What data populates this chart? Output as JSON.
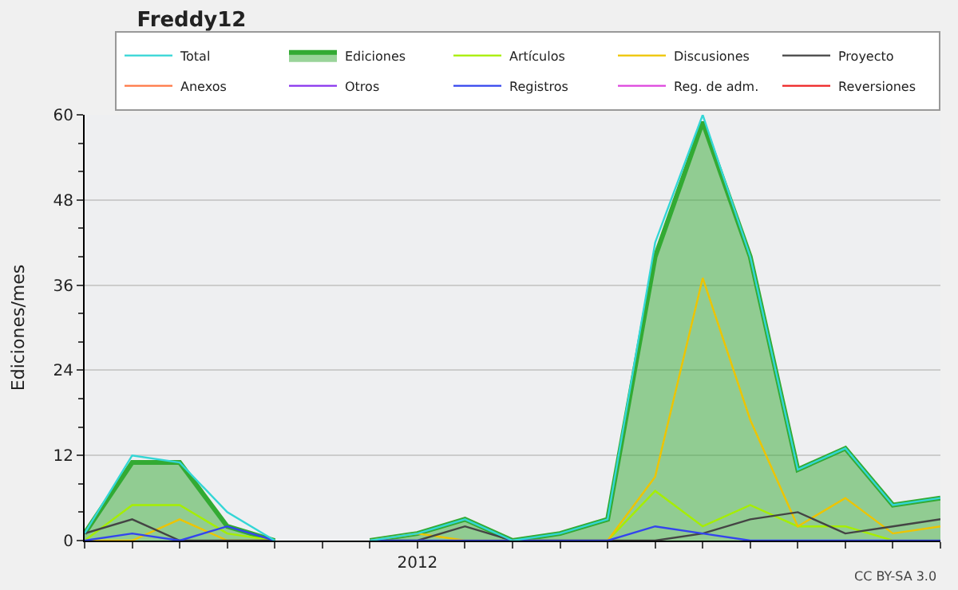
{
  "chart_data": {
    "type": "line",
    "title": "Freddy12",
    "ylabel": "Ediciones/mes",
    "categories": [
      null,
      null,
      null,
      null,
      null,
      null,
      null,
      "2012",
      null,
      null,
      null,
      null,
      null,
      null,
      null,
      null,
      null,
      null,
      null
    ],
    "series": [
      {
        "name": "Total",
        "color": "#33d6d6",
        "values": [
          1,
          12,
          11,
          4,
          0,
          null,
          0,
          1,
          3,
          0,
          1,
          3,
          42,
          60,
          40,
          10,
          13,
          5,
          6
        ]
      },
      {
        "name": "Ediciones",
        "type": "area",
        "color": "#33aa33",
        "values": [
          1,
          11,
          11,
          2,
          0,
          null,
          0,
          1,
          3,
          0,
          1,
          3,
          40,
          59,
          40,
          10,
          13,
          5,
          6
        ]
      },
      {
        "name": "Artículos",
        "color": "#a6ee00",
        "values": [
          0,
          5,
          5,
          1,
          0,
          null,
          0,
          0,
          0,
          0,
          0,
          0,
          7,
          2,
          5,
          2,
          2,
          0,
          0
        ]
      },
      {
        "name": "Discusiones",
        "color": "#eec400",
        "values": [
          0,
          0,
          3,
          0,
          0,
          null,
          0,
          1,
          0,
          0,
          0,
          0,
          9,
          37,
          17,
          2,
          6,
          1,
          2
        ]
      },
      {
        "name": "Proyecto",
        "color": "#444444",
        "values": [
          1,
          3,
          0,
          0,
          0,
          null,
          0,
          0,
          2,
          0,
          0,
          0,
          0,
          1,
          3,
          4,
          1,
          2,
          3
        ]
      },
      {
        "name": "Anexos",
        "color": "#ff7744",
        "values": [
          null,
          null,
          null,
          null,
          null,
          null,
          null,
          null,
          null,
          null,
          null,
          null,
          null,
          null,
          null,
          null,
          null,
          null,
          null
        ]
      },
      {
        "name": "Otros",
        "color": "#8833ee",
        "values": [
          null,
          null,
          null,
          null,
          null,
          null,
          null,
          null,
          null,
          null,
          null,
          null,
          null,
          null,
          null,
          null,
          null,
          null,
          null
        ]
      },
      {
        "name": "Registros",
        "color": "#3344ee",
        "values": [
          0,
          1,
          0,
          2,
          0,
          null,
          0,
          0,
          0,
          0,
          0,
          0,
          2,
          1,
          0,
          0,
          0,
          0,
          0
        ]
      },
      {
        "name": "Reg. de adm.",
        "color": "#dd44dd",
        "values": [
          null,
          null,
          null,
          null,
          null,
          null,
          null,
          null,
          null,
          null,
          null,
          null,
          null,
          null,
          null,
          null,
          null,
          null,
          null
        ]
      },
      {
        "name": "Reversiones",
        "color": "#ee2222",
        "values": [
          null,
          null,
          null,
          null,
          null,
          null,
          null,
          null,
          null,
          null,
          null,
          null,
          null,
          null,
          null,
          null,
          null,
          null,
          null
        ]
      }
    ],
    "ylim": [
      0,
      60
    ],
    "yticks": [
      0,
      12,
      24,
      36,
      48,
      60
    ],
    "grid": "y",
    "legend": "top right",
    "annotations": [
      "CC BY-SA 3.0"
    ]
  }
}
